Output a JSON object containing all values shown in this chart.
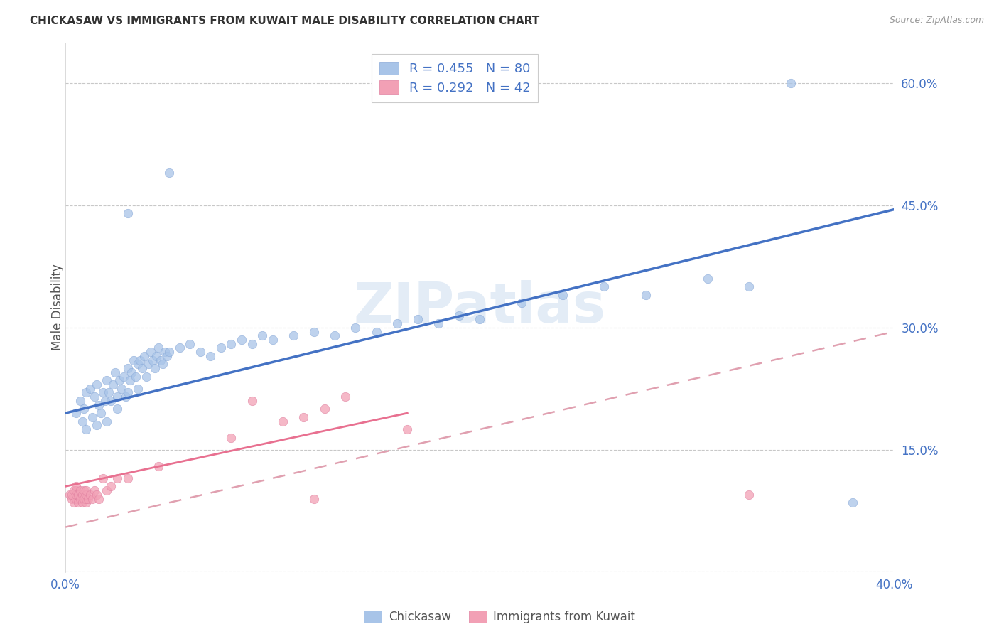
{
  "title": "CHICKASAW VS IMMIGRANTS FROM KUWAIT MALE DISABILITY CORRELATION CHART",
  "source": "Source: ZipAtlas.com",
  "ylabel": "Male Disability",
  "xlim": [
    0.0,
    0.4
  ],
  "ylim": [
    0.0,
    0.65
  ],
  "background_color": "#ffffff",
  "watermark": "ZIPatlas",
  "legend_r1": "0.455",
  "legend_n1": "80",
  "legend_r2": "0.292",
  "legend_n2": "42",
  "chickasaw_color": "#a8c4e8",
  "kuwait_color": "#f2a0b5",
  "trendline1_color": "#4472c4",
  "trendline2_solid_color": "#e87090",
  "trendline2_dashed_color": "#e0a0b0",
  "chickasaw_x": [
    0.005,
    0.007,
    0.008,
    0.009,
    0.01,
    0.01,
    0.012,
    0.013,
    0.014,
    0.015,
    0.015,
    0.016,
    0.017,
    0.018,
    0.019,
    0.02,
    0.02,
    0.021,
    0.022,
    0.023,
    0.024,
    0.025,
    0.025,
    0.026,
    0.027,
    0.028,
    0.029,
    0.03,
    0.03,
    0.031,
    0.032,
    0.033,
    0.034,
    0.035,
    0.035,
    0.036,
    0.037,
    0.038,
    0.039,
    0.04,
    0.041,
    0.042,
    0.043,
    0.044,
    0.045,
    0.046,
    0.047,
    0.048,
    0.049,
    0.05,
    0.055,
    0.06,
    0.065,
    0.07,
    0.075,
    0.08,
    0.085,
    0.09,
    0.095,
    0.1,
    0.11,
    0.12,
    0.13,
    0.14,
    0.15,
    0.16,
    0.17,
    0.18,
    0.19,
    0.2,
    0.22,
    0.24,
    0.26,
    0.28,
    0.31,
    0.33,
    0.03,
    0.05,
    0.35,
    0.38
  ],
  "chickasaw_y": [
    0.195,
    0.21,
    0.185,
    0.2,
    0.22,
    0.175,
    0.225,
    0.19,
    0.215,
    0.23,
    0.18,
    0.205,
    0.195,
    0.22,
    0.21,
    0.235,
    0.185,
    0.22,
    0.21,
    0.23,
    0.245,
    0.215,
    0.2,
    0.235,
    0.225,
    0.24,
    0.215,
    0.25,
    0.22,
    0.235,
    0.245,
    0.26,
    0.24,
    0.255,
    0.225,
    0.26,
    0.25,
    0.265,
    0.24,
    0.255,
    0.27,
    0.26,
    0.25,
    0.265,
    0.275,
    0.26,
    0.255,
    0.27,
    0.265,
    0.27,
    0.275,
    0.28,
    0.27,
    0.265,
    0.275,
    0.28,
    0.285,
    0.28,
    0.29,
    0.285,
    0.29,
    0.295,
    0.29,
    0.3,
    0.295,
    0.305,
    0.31,
    0.305,
    0.315,
    0.31,
    0.33,
    0.34,
    0.35,
    0.34,
    0.36,
    0.35,
    0.44,
    0.49,
    0.6,
    0.085
  ],
  "kuwait_x": [
    0.002,
    0.003,
    0.003,
    0.004,
    0.004,
    0.005,
    0.005,
    0.005,
    0.005,
    0.006,
    0.006,
    0.007,
    0.007,
    0.008,
    0.008,
    0.009,
    0.009,
    0.01,
    0.01,
    0.01,
    0.01,
    0.011,
    0.012,
    0.013,
    0.014,
    0.015,
    0.016,
    0.018,
    0.02,
    0.022,
    0.025,
    0.03,
    0.045,
    0.08,
    0.09,
    0.105,
    0.115,
    0.125,
    0.135,
    0.165,
    0.33,
    0.12
  ],
  "kuwait_y": [
    0.095,
    0.09,
    0.095,
    0.085,
    0.1,
    0.09,
    0.095,
    0.1,
    0.105,
    0.085,
    0.095,
    0.09,
    0.1,
    0.085,
    0.095,
    0.09,
    0.1,
    0.085,
    0.09,
    0.095,
    0.1,
    0.09,
    0.095,
    0.09,
    0.1,
    0.095,
    0.09,
    0.115,
    0.1,
    0.105,
    0.115,
    0.115,
    0.13,
    0.165,
    0.21,
    0.185,
    0.19,
    0.2,
    0.215,
    0.175,
    0.095,
    0.09
  ],
  "trendline1_x0": 0.0,
  "trendline1_y0": 0.195,
  "trendline1_x1": 0.4,
  "trendline1_y1": 0.445,
  "trendline2_solid_x0": 0.0,
  "trendline2_solid_y0": 0.105,
  "trendline2_solid_x1": 0.165,
  "trendline2_solid_y1": 0.195,
  "trendline2_dashed_x0": 0.0,
  "trendline2_dashed_y0": 0.055,
  "trendline2_dashed_x1": 0.4,
  "trendline2_dashed_y1": 0.295
}
